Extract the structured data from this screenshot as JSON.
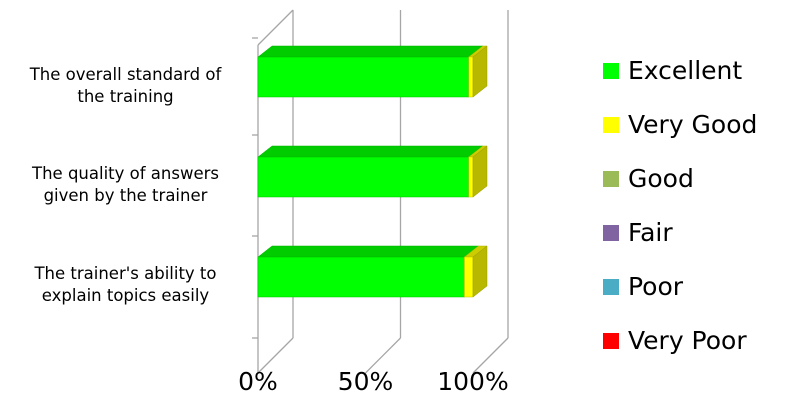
{
  "chart_data": {
    "type": "bar",
    "orientation": "horizontal",
    "stacked": "100%",
    "style": "3d",
    "categories": [
      "The overall standard of the training",
      "The quality of answers given by the trainer",
      "The trainer's ability to explain topics easily"
    ],
    "category_lines": [
      [
        "The overall standard of",
        "the training"
      ],
      [
        "The quality of answers",
        "given by the trainer"
      ],
      [
        "The trainer's ability to",
        "explain topics easily"
      ]
    ],
    "series": [
      {
        "name": "Excellent",
        "color": "#00ff00",
        "values": [
          98,
          98,
          96
        ]
      },
      {
        "name": "Very Good",
        "color": "#ffff00",
        "values": [
          2,
          2,
          4
        ]
      },
      {
        "name": "Good",
        "color": "#9bbb59",
        "values": [
          0,
          0,
          0
        ]
      },
      {
        "name": "Fair",
        "color": "#8064a2",
        "values": [
          0,
          0,
          0
        ]
      },
      {
        "name": "Poor",
        "color": "#4bacc6",
        "values": [
          0,
          0,
          0
        ]
      },
      {
        "name": "Very Poor",
        "color": "#ff0000",
        "values": [
          0,
          0,
          0
        ]
      }
    ],
    "x_ticks": [
      "0%",
      "50%",
      "100%"
    ],
    "xlim": [
      0,
      100
    ],
    "grid": true,
    "legend_position": "right"
  }
}
